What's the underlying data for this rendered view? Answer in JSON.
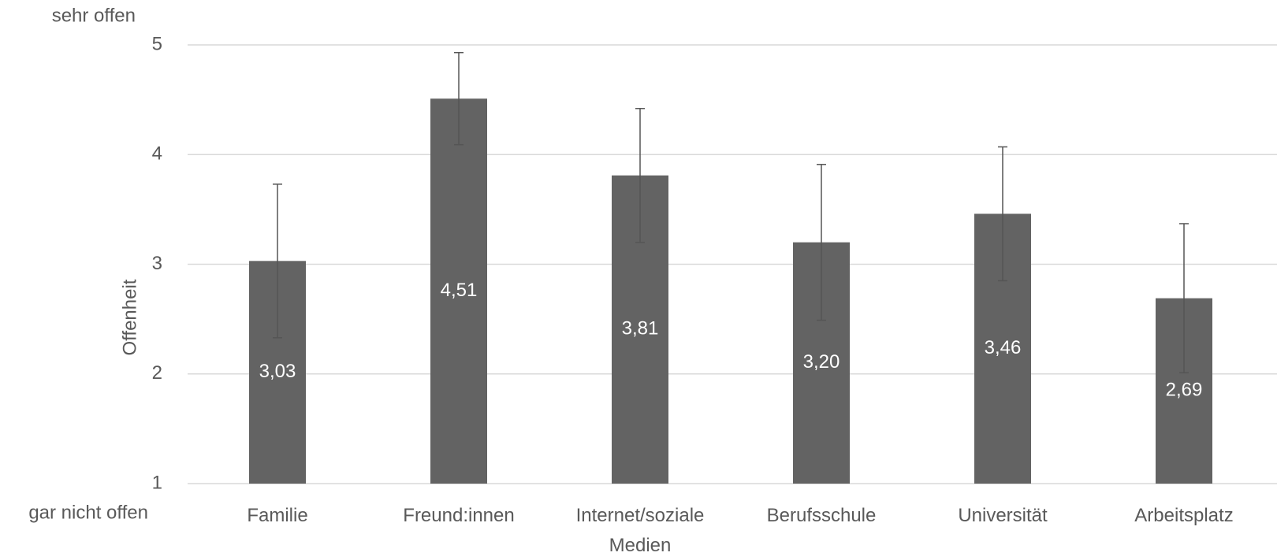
{
  "chart_data": {
    "type": "bar",
    "y_label": "Offenheit",
    "annotations": [
      "sehr offen",
      "gar nicht offen"
    ],
    "categories": [
      "Familie",
      "Freund:innen",
      "Internet/soziale Medien",
      "Berufsschule",
      "Universität",
      "Arbeitsplatz"
    ],
    "values": [
      3.03,
      4.51,
      3.81,
      3.2,
      3.46,
      2.69
    ],
    "value_labels": [
      "3,03",
      "4,51",
      "3,81",
      "3,20",
      "3,46",
      "2,69"
    ],
    "errors": [
      0.7,
      0.42,
      0.61,
      0.71,
      0.61,
      0.68
    ],
    "color": "#636363",
    "ylim": [
      1,
      5
    ],
    "yticks": [
      1,
      2,
      3,
      4,
      5
    ],
    "grid": true
  }
}
